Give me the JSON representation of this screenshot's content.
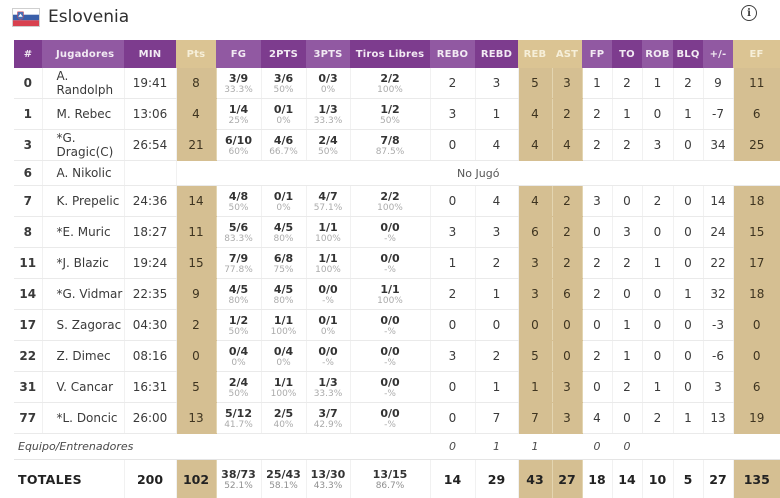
{
  "colors": {
    "purple_dark": "#7D3C8E",
    "purple_light": "#9159A2",
    "tan_header": "#DBC493",
    "tan_cell": "#D5BF92",
    "text_dark": "#333333",
    "pct_gray": "#ABABAB"
  },
  "header": {
    "team_name": "Eslovenia",
    "flag_icon": "slovenia-flag",
    "info_icon_glyph": "i"
  },
  "table": {
    "columns": [
      {
        "id": "num",
        "label": "#",
        "tone": "dark"
      },
      {
        "id": "name",
        "label": "Jugadores",
        "tone": "light"
      },
      {
        "id": "min",
        "label": "MIN",
        "tone": "dark"
      },
      {
        "id": "pts",
        "label": "Pts",
        "tone": "tan"
      },
      {
        "id": "fg",
        "label": "FG",
        "tone": "light"
      },
      {
        "id": "p2",
        "label": "2PTS",
        "tone": "dark"
      },
      {
        "id": "p3",
        "label": "3PTS",
        "tone": "light"
      },
      {
        "id": "ft",
        "label": "Tiros Libres",
        "tone": "dark"
      },
      {
        "id": "rebo",
        "label": "REBO",
        "tone": "light"
      },
      {
        "id": "rebd",
        "label": "REBD",
        "tone": "dark"
      },
      {
        "id": "reb",
        "label": "REB",
        "tone": "tan"
      },
      {
        "id": "ast",
        "label": "AST",
        "tone": "tan"
      },
      {
        "id": "fp",
        "label": "FP",
        "tone": "light"
      },
      {
        "id": "to",
        "label": "TO",
        "tone": "dark"
      },
      {
        "id": "rob",
        "label": "ROB",
        "tone": "light"
      },
      {
        "id": "blq",
        "label": "BLQ",
        "tone": "dark"
      },
      {
        "id": "pm",
        "label": "+/-",
        "tone": "light"
      },
      {
        "id": "ef",
        "label": "EF",
        "tone": "tan"
      }
    ],
    "dnp_text": "No Jugó",
    "players": [
      {
        "num": "0",
        "name": "A. Randolph",
        "min": "19:41",
        "pts": "8",
        "fg": [
          "3/9",
          "33.3%"
        ],
        "p2": [
          "3/6",
          "50%"
        ],
        "p3": [
          "0/3",
          "0%"
        ],
        "ft": [
          "2/2",
          "100%"
        ],
        "rebo": "2",
        "rebd": "3",
        "reb": "5",
        "ast": "3",
        "fp": "1",
        "to": "2",
        "rob": "1",
        "blq": "2",
        "pm": "9",
        "ef": "11"
      },
      {
        "num": "1",
        "name": "M. Rebec",
        "min": "13:06",
        "pts": "4",
        "fg": [
          "1/4",
          "25%"
        ],
        "p2": [
          "0/1",
          "0%"
        ],
        "p3": [
          "1/3",
          "33.3%"
        ],
        "ft": [
          "1/2",
          "50%"
        ],
        "rebo": "3",
        "rebd": "1",
        "reb": "4",
        "ast": "2",
        "fp": "2",
        "to": "1",
        "rob": "0",
        "blq": "1",
        "pm": "-7",
        "ef": "6"
      },
      {
        "num": "3",
        "name": "*G. Dragic(C)",
        "min": "26:54",
        "pts": "21",
        "fg": [
          "6/10",
          "60%"
        ],
        "p2": [
          "4/6",
          "66.7%"
        ],
        "p3": [
          "2/4",
          "50%"
        ],
        "ft": [
          "7/8",
          "87.5%"
        ],
        "rebo": "0",
        "rebd": "4",
        "reb": "4",
        "ast": "4",
        "fp": "2",
        "to": "2",
        "rob": "3",
        "blq": "0",
        "pm": "34",
        "ef": "25"
      },
      {
        "num": "6",
        "name": "A. Nikolic",
        "dnp": true
      },
      {
        "num": "7",
        "name": "K. Prepelic",
        "min": "24:36",
        "pts": "14",
        "fg": [
          "4/8",
          "50%"
        ],
        "p2": [
          "0/1",
          "0%"
        ],
        "p3": [
          "4/7",
          "57.1%"
        ],
        "ft": [
          "2/2",
          "100%"
        ],
        "rebo": "0",
        "rebd": "4",
        "reb": "4",
        "ast": "2",
        "fp": "3",
        "to": "0",
        "rob": "2",
        "blq": "0",
        "pm": "14",
        "ef": "18"
      },
      {
        "num": "8",
        "name": "*E. Muric",
        "min": "18:27",
        "pts": "11",
        "fg": [
          "5/6",
          "83.3%"
        ],
        "p2": [
          "4/5",
          "80%"
        ],
        "p3": [
          "1/1",
          "100%"
        ],
        "ft": [
          "0/0",
          "-%"
        ],
        "rebo": "3",
        "rebd": "3",
        "reb": "6",
        "ast": "2",
        "fp": "0",
        "to": "3",
        "rob": "0",
        "blq": "0",
        "pm": "24",
        "ef": "15"
      },
      {
        "num": "11",
        "name": "*J. Blazic",
        "min": "19:24",
        "pts": "15",
        "fg": [
          "7/9",
          "77.8%"
        ],
        "p2": [
          "6/8",
          "75%"
        ],
        "p3": [
          "1/1",
          "100%"
        ],
        "ft": [
          "0/0",
          "-%"
        ],
        "rebo": "1",
        "rebd": "2",
        "reb": "3",
        "ast": "2",
        "fp": "2",
        "to": "2",
        "rob": "1",
        "blq": "0",
        "pm": "22",
        "ef": "17"
      },
      {
        "num": "14",
        "name": "*G. Vidmar",
        "min": "22:35",
        "pts": "9",
        "fg": [
          "4/5",
          "80%"
        ],
        "p2": [
          "4/5",
          "80%"
        ],
        "p3": [
          "0/0",
          "-%"
        ],
        "ft": [
          "1/1",
          "100%"
        ],
        "rebo": "2",
        "rebd": "1",
        "reb": "3",
        "ast": "6",
        "fp": "2",
        "to": "0",
        "rob": "0",
        "blq": "1",
        "pm": "32",
        "ef": "18"
      },
      {
        "num": "17",
        "name": "S. Zagorac",
        "min": "04:30",
        "pts": "2",
        "fg": [
          "1/2",
          "50%"
        ],
        "p2": [
          "1/1",
          "100%"
        ],
        "p3": [
          "0/1",
          "0%"
        ],
        "ft": [
          "0/0",
          "-%"
        ],
        "rebo": "0",
        "rebd": "0",
        "reb": "0",
        "ast": "0",
        "fp": "0",
        "to": "1",
        "rob": "0",
        "blq": "0",
        "pm": "-3",
        "ef": "0"
      },
      {
        "num": "22",
        "name": "Z. Dimec",
        "min": "08:16",
        "pts": "0",
        "fg": [
          "0/4",
          "0%"
        ],
        "p2": [
          "0/4",
          "0%"
        ],
        "p3": [
          "0/0",
          "-%"
        ],
        "ft": [
          "0/0",
          "-%"
        ],
        "rebo": "3",
        "rebd": "2",
        "reb": "5",
        "ast": "0",
        "fp": "2",
        "to": "1",
        "rob": "0",
        "blq": "0",
        "pm": "-6",
        "ef": "0"
      },
      {
        "num": "31",
        "name": "V. Cancar",
        "min": "16:31",
        "pts": "5",
        "fg": [
          "2/4",
          "50%"
        ],
        "p2": [
          "1/1",
          "100%"
        ],
        "p3": [
          "1/3",
          "33.3%"
        ],
        "ft": [
          "0/0",
          "-%"
        ],
        "rebo": "0",
        "rebd": "1",
        "reb": "1",
        "ast": "3",
        "fp": "0",
        "to": "2",
        "rob": "1",
        "blq": "0",
        "pm": "3",
        "ef": "6"
      },
      {
        "num": "77",
        "name": "*L. Doncic",
        "min": "26:00",
        "pts": "13",
        "fg": [
          "5/12",
          "41.7%"
        ],
        "p2": [
          "2/5",
          "40%"
        ],
        "p3": [
          "3/7",
          "42.9%"
        ],
        "ft": [
          "0/0",
          "-%"
        ],
        "rebo": "0",
        "rebd": "7",
        "reb": "7",
        "ast": "3",
        "fp": "4",
        "to": "0",
        "rob": "2",
        "blq": "1",
        "pm": "13",
        "ef": "19"
      }
    ],
    "team_row": {
      "label": "Equipo/Entrenadores",
      "rebo": "0",
      "rebd": "1",
      "reb": "1",
      "ast": "",
      "fp": "0",
      "to": "0",
      "rob": "",
      "blq": "",
      "pm": "",
      "ef": ""
    },
    "totals": {
      "label": "TOTALES",
      "min": "200",
      "pts": "102",
      "fg": [
        "38/73",
        "52.1%"
      ],
      "p2": [
        "25/43",
        "58.1%"
      ],
      "p3": [
        "13/30",
        "43.3%"
      ],
      "ft": [
        "13/15",
        "86.7%"
      ],
      "rebo": "14",
      "rebd": "29",
      "reb": "43",
      "ast": "27",
      "fp": "18",
      "to": "14",
      "rob": "10",
      "blq": "5",
      "pm": "27",
      "ef": "135"
    }
  }
}
